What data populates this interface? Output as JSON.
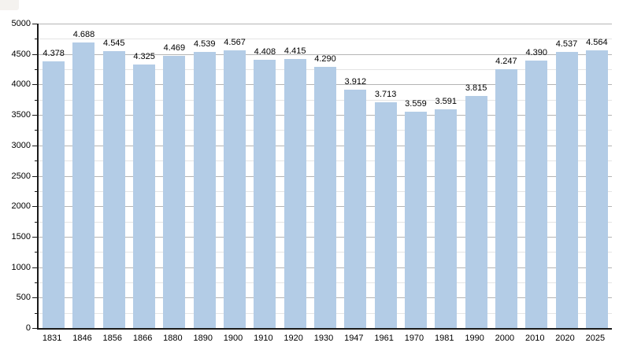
{
  "colors": {
    "bar": "#b3cce6",
    "grid_major": "#b4b4b4",
    "grid_minor": "#e4e4e4",
    "axis": "#1a1a1a",
    "text": "#000000",
    "corner_artifact": "#f4f2ef",
    "background": "#ffffff"
  },
  "chart_data": {
    "type": "bar",
    "title": "",
    "xlabel": "",
    "ylabel": "",
    "categories": [
      "1831",
      "1846",
      "1856",
      "1866",
      "1880",
      "1890",
      "1900",
      "1910",
      "1920",
      "1930",
      "1947",
      "1961",
      "1970",
      "1981",
      "1990",
      "2000",
      "2010",
      "2020",
      "2025"
    ],
    "values": [
      4378,
      4688,
      4545,
      4325,
      4469,
      4539,
      4567,
      4408,
      4415,
      4290,
      3912,
      3713,
      3559,
      3591,
      3815,
      4247,
      4390,
      4537,
      4564
    ],
    "value_labels": [
      "4.378",
      "4.688",
      "4.545",
      "4.325",
      "4.469",
      "4.539",
      "4.567",
      "4.408",
      "4.415",
      "4.290",
      "3.912",
      "3.713",
      "3.559",
      "3.591",
      "3.815",
      "4.247",
      "4.390",
      "4.537",
      "4.564"
    ],
    "ylim": [
      0,
      5000
    ],
    "y_major_tick_step": 500,
    "y_minor_tick_step": 250,
    "y_tick_labels": [
      "0",
      "500",
      "1000",
      "1500",
      "2000",
      "2500",
      "3000",
      "3500",
      "4000",
      "4500",
      "5000"
    ],
    "grid": "horizontal major and minor gridlines, drawn behind bars",
    "legend": "none",
    "bar_color": "#b3cce6"
  }
}
